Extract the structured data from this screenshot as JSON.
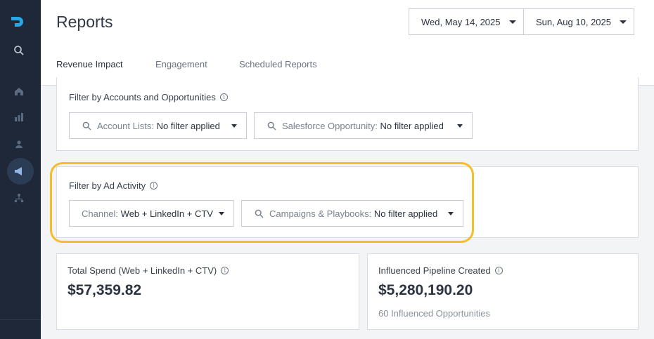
{
  "sidebar": {
    "icons": [
      "logo-icon",
      "search-icon",
      "home-icon",
      "stats-icon",
      "users-icon",
      "megaphone-icon",
      "org-chart-icon"
    ]
  },
  "header": {
    "title": "Reports",
    "date_start": "Wed, May 14, 2025",
    "date_end": "Sun, Aug 10, 2025",
    "tabs": [
      {
        "label": "Revenue Impact",
        "active": true
      },
      {
        "label": "Engagement",
        "active": false
      },
      {
        "label": "Scheduled Reports",
        "active": false
      }
    ]
  },
  "account_filters": {
    "label": "Filter by Accounts and Opportunities",
    "account_lists": {
      "key": "Account Lists:",
      "value": "No filter applied"
    },
    "salesforce_opportunity": {
      "key": "Salesforce Opportunity:",
      "value": "No filter applied"
    }
  },
  "ad_filters": {
    "label": "Filter by Ad Activity",
    "channel": {
      "key": "Channel:",
      "value": "Web + LinkedIn + CTV"
    },
    "campaigns": {
      "key": "Campaigns & Playbooks:",
      "value": "No filter applied"
    }
  },
  "metrics": {
    "total_spend": {
      "title": "Total Spend (Web + LinkedIn + CTV)",
      "value": "$57,359.82"
    },
    "influenced_pipeline": {
      "title": "Influenced Pipeline Created",
      "value": "$5,280,190.20",
      "sub": "60 Influenced Opportunities"
    }
  },
  "colors": {
    "sidebar_bg": "#1e2838",
    "logo": "#2ea3e6",
    "highlight": "#f6bd2a"
  }
}
